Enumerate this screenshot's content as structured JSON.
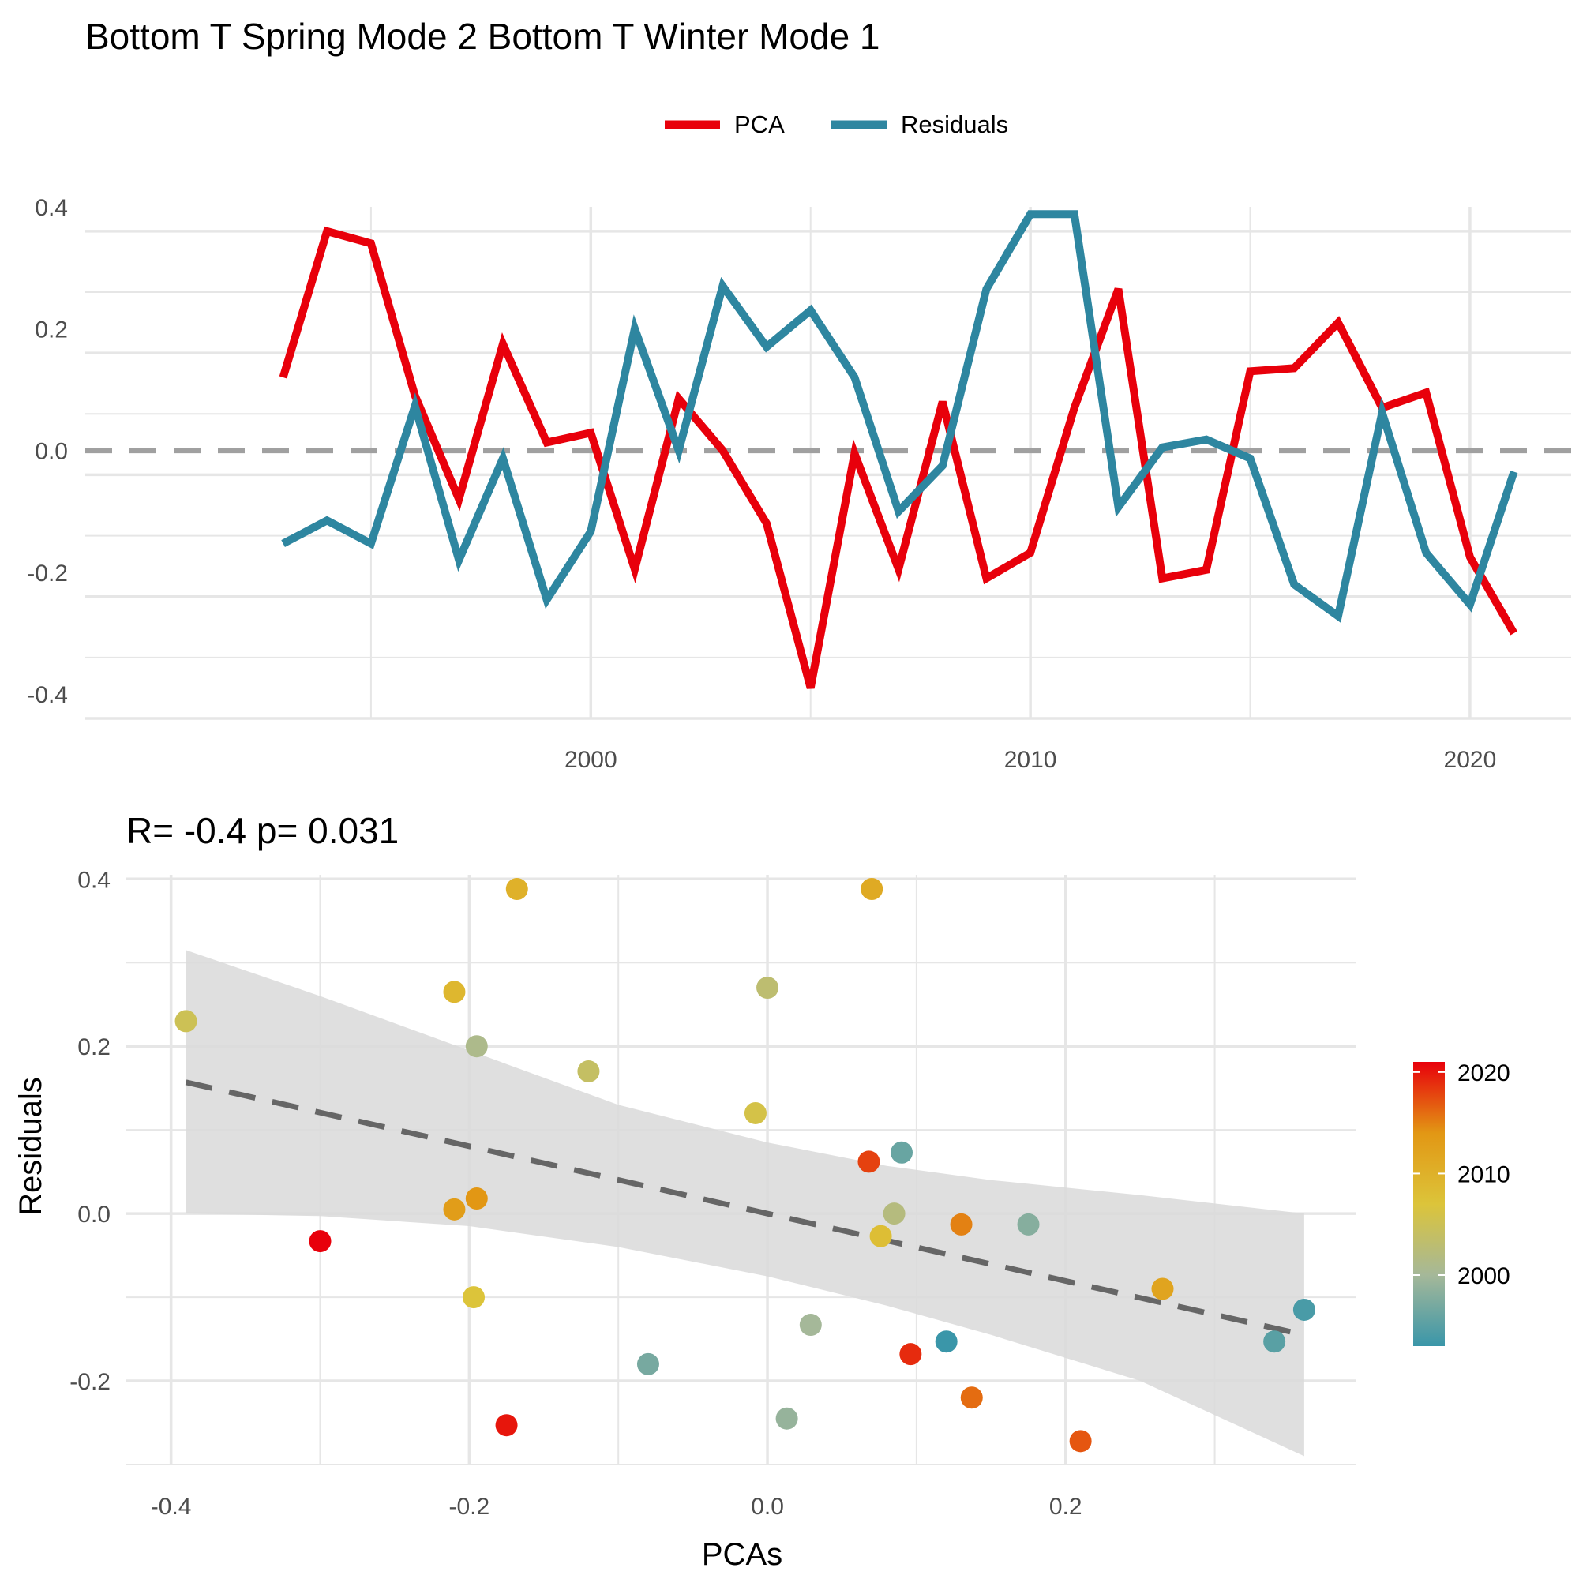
{
  "title": "Bottom T Spring Mode 2 Bottom T Winter Mode 1",
  "chart_data": [
    {
      "type": "line",
      "legend_position": "top",
      "series": [
        {
          "name": "PCA",
          "color": "#e8000b",
          "x": [
            1993,
            1994,
            1995,
            1996,
            1997,
            1998,
            1999,
            2000,
            2001,
            2002,
            2003,
            2004,
            2005,
            2006,
            2007,
            2008,
            2009,
            2010,
            2011,
            2012,
            2013,
            2014,
            2015,
            2016,
            2017,
            2018,
            2019,
            2020,
            2021
          ],
          "values": [
            0.12,
            0.36,
            0.34,
            0.09,
            -0.08,
            0.175,
            0.013,
            0.029,
            -0.195,
            0.085,
            0.0,
            -0.12,
            -0.39,
            -0.005,
            -0.195,
            0.08,
            -0.21,
            -0.168,
            0.07,
            0.265,
            -0.21,
            -0.196,
            0.13,
            0.135,
            0.21,
            0.07,
            0.095,
            -0.175,
            -0.3
          ]
        },
        {
          "name": "Residuals",
          "color": "#2e86a0",
          "x": [
            1993,
            1994,
            1995,
            1996,
            1997,
            1998,
            1999,
            2000,
            2001,
            2002,
            2003,
            2004,
            2005,
            2006,
            2007,
            2008,
            2009,
            2010,
            2011,
            2012,
            2013,
            2014,
            2015,
            2016,
            2017,
            2018,
            2019,
            2020,
            2021
          ],
          "values": [
            -0.153,
            -0.115,
            -0.153,
            0.073,
            -0.18,
            -0.013,
            -0.245,
            -0.133,
            0.2,
            0.0,
            0.27,
            0.17,
            0.23,
            0.12,
            -0.1,
            -0.025,
            0.265,
            0.388,
            0.388,
            -0.093,
            0.005,
            0.018,
            -0.013,
            -0.22,
            -0.272,
            0.062,
            -0.168,
            -0.253,
            -0.035
          ]
        }
      ],
      "xlim": [
        1988.5,
        2022.3
      ],
      "ylim": [
        -0.44,
        0.4
      ],
      "x_ticks": [
        2000,
        2010,
        2020
      ],
      "y_ticks": [
        0.4,
        0.2,
        0.0,
        -0.2,
        -0.4
      ],
      "x_tick_labels": [
        "2000",
        "2010",
        "2020"
      ],
      "y_tick_labels": [
        "0.4",
        "0.2",
        "0.0",
        "-0.2",
        "-0.4"
      ],
      "reference_line": 0,
      "grid": true
    },
    {
      "type": "scatter",
      "title": "R= -0.4  p= 0.031",
      "xlabel": "PCAs",
      "ylabel": "Residuals",
      "xlim": [
        -0.43,
        0.395
      ],
      "ylim": [
        -0.3,
        0.405
      ],
      "x_ticks": [
        -0.4,
        -0.2,
        0.0,
        0.2
      ],
      "y_ticks": [
        0.4,
        0.2,
        0.0,
        -0.2
      ],
      "x_tick_labels": [
        "-0.4",
        "-0.2",
        "0.0",
        "0.2"
      ],
      "y_tick_labels": [
        "0.4",
        "0.2",
        "0.0",
        "-0.2"
      ],
      "grid": true,
      "points": [
        {
          "x": 0.12,
          "y": -0.153,
          "year": 1993
        },
        {
          "x": 0.36,
          "y": -0.115,
          "year": 1994
        },
        {
          "x": 0.34,
          "y": -0.153,
          "year": 1995
        },
        {
          "x": 0.09,
          "y": 0.073,
          "year": 1996
        },
        {
          "x": -0.08,
          "y": -0.18,
          "year": 1997
        },
        {
          "x": 0.175,
          "y": -0.013,
          "year": 1998
        },
        {
          "x": 0.013,
          "y": -0.245,
          "year": 1999
        },
        {
          "x": 0.029,
          "y": -0.133,
          "year": 2000
        },
        {
          "x": -0.195,
          "y": 0.2,
          "year": 2001
        },
        {
          "x": 0.085,
          "y": 0.0,
          "year": 2002
        },
        {
          "x": 0.0,
          "y": 0.27,
          "year": 2003
        },
        {
          "x": -0.12,
          "y": 0.17,
          "year": 2004
        },
        {
          "x": -0.39,
          "y": 0.23,
          "year": 2005
        },
        {
          "x": -0.008,
          "y": 0.12,
          "year": 2006
        },
        {
          "x": -0.197,
          "y": -0.1,
          "year": 2007
        },
        {
          "x": 0.076,
          "y": -0.027,
          "year": 2008
        },
        {
          "x": -0.21,
          "y": 0.265,
          "year": 2009
        },
        {
          "x": -0.168,
          "y": 0.388,
          "year": 2010
        },
        {
          "x": 0.07,
          "y": 0.388,
          "year": 2011
        },
        {
          "x": 0.265,
          "y": -0.09,
          "year": 2012
        },
        {
          "x": -0.21,
          "y": 0.005,
          "year": 2013
        },
        {
          "x": -0.195,
          "y": 0.018,
          "year": 2014
        },
        {
          "x": 0.13,
          "y": -0.013,
          "year": 2015
        },
        {
          "x": 0.137,
          "y": -0.22,
          "year": 2016
        },
        {
          "x": 0.21,
          "y": -0.272,
          "year": 2017
        },
        {
          "x": 0.068,
          "y": 0.062,
          "year": 2018
        },
        {
          "x": 0.096,
          "y": -0.168,
          "year": 2019
        },
        {
          "x": -0.175,
          "y": -0.253,
          "year": 2020
        },
        {
          "x": -0.3,
          "y": -0.033,
          "year": 2021
        }
      ],
      "trend_line": {
        "x": [
          -0.39,
          0.36
        ],
        "y": [
          0.157,
          -0.145
        ]
      },
      "confidence_band": {
        "x": [
          -0.39,
          -0.3,
          -0.2,
          -0.1,
          0.0,
          0.08,
          0.15,
          0.25,
          0.36
        ],
        "upper": [
          0.315,
          0.26,
          0.195,
          0.13,
          0.085,
          0.057,
          0.04,
          0.022,
          0.0
        ],
        "lower": [
          0.0,
          -0.003,
          -0.015,
          -0.04,
          -0.075,
          -0.11,
          -0.145,
          -0.2,
          -0.29
        ]
      },
      "colorbar": {
        "position": "right",
        "range": [
          1993,
          2021
        ],
        "ticks": [
          2000,
          2010,
          2020
        ],
        "tick_labels": [
          "2000",
          "2010",
          "2020"
        ],
        "colors": [
          "#3a96a9",
          "#a5b899",
          "#dcc43a",
          "#e29714",
          "#e8000b"
        ]
      }
    }
  ]
}
